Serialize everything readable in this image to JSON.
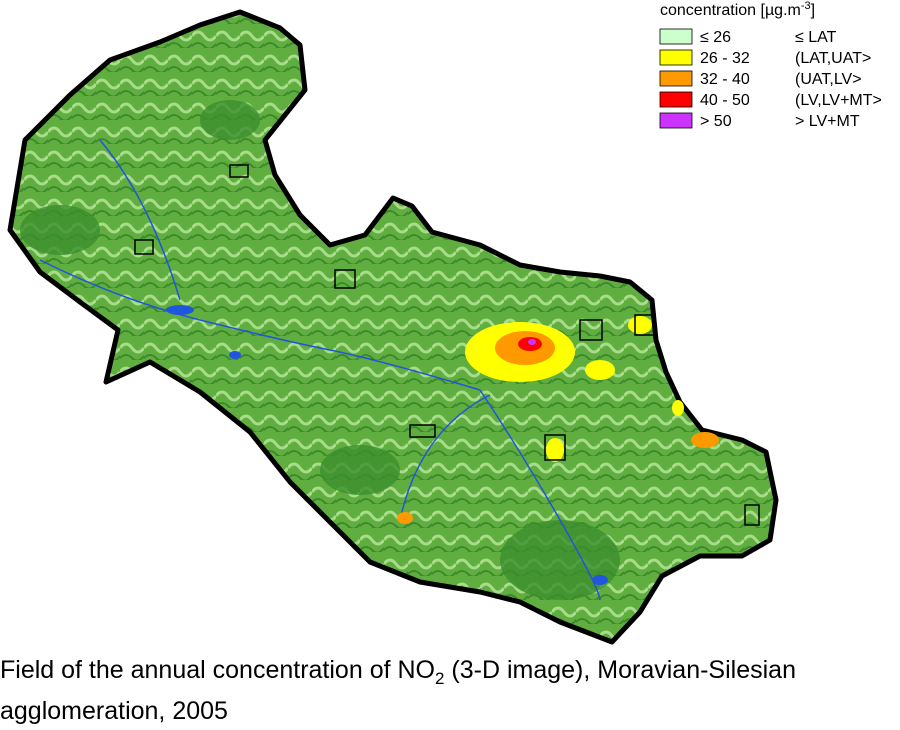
{
  "legend": {
    "title": {
      "text": "concentration [µg.m",
      "sup": "-3",
      "end": "]"
    },
    "items": [
      {
        "range": "≤ 26",
        "label": "≤ LAT",
        "color": "#ccffcc"
      },
      {
        "range": "26 - 32",
        "label": "(LAT,UAT>",
        "color": "#ffff00"
      },
      {
        "range": "32 - 40",
        "label": "(UAT,LV>",
        "color": "#ff9900"
      },
      {
        "range": "40 - 50",
        "label": "(LV,LV+MT>",
        "color": "#ff0000"
      },
      {
        "range": "> 50",
        "label": "> LV+MT",
        "color": "#cc33ff"
      }
    ]
  },
  "caption": {
    "before": "Field of the annual concentration of NO",
    "sub": "2",
    "after": " (3-D image), Moravian-Silesian agglomeration, 2005"
  }
}
